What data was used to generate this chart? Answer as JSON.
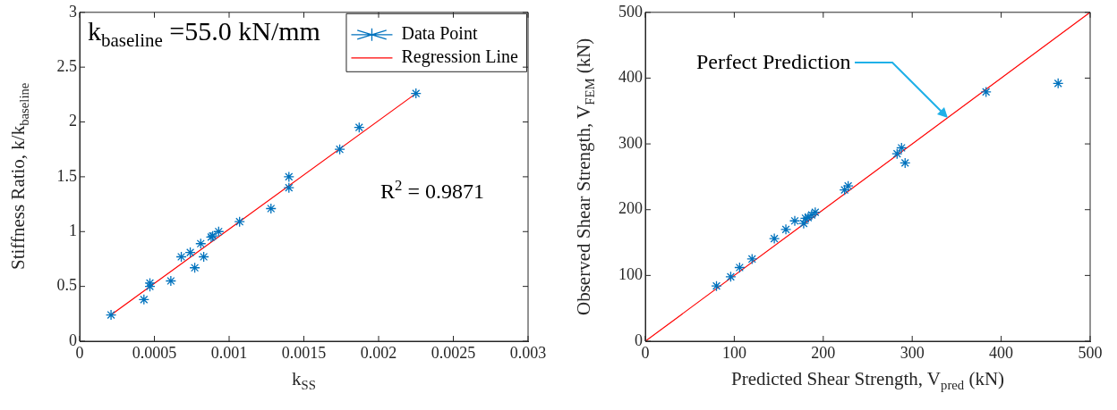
{
  "chart_data": [
    {
      "type": "scatter",
      "xlabel": "k$_{SS}$",
      "ylabel": "Stiffness Ratio, k/k$_{baseline}$",
      "xlim": [
        0,
        0.003
      ],
      "xticks": [
        0,
        0.0005,
        0.001,
        0.0015,
        0.002,
        0.0025,
        0.003
      ],
      "ylim": [
        0,
        3
      ],
      "yticks": [
        0,
        0.5,
        1,
        1.5,
        2,
        2.5,
        3
      ],
      "legend": "top right",
      "marker": "cross",
      "annotations": [
        "k$_{baseline}$ =55.0 kN/mm",
        "R$^{2}$ = 0.9871"
      ],
      "series": [
        {
          "name": "Data Point",
          "color": "#0072bd",
          "x": [
            0.00021,
            0.00043,
            0.00047,
            0.00047,
            0.00061,
            0.00068,
            0.00074,
            0.00077,
            0.00081,
            0.00083,
            0.00088,
            0.00089,
            0.00093,
            0.00107,
            0.00128,
            0.0014,
            0.0014,
            0.00174,
            0.00187,
            0.00225
          ],
          "values": [
            0.24,
            0.38,
            0.5,
            0.53,
            0.55,
            0.77,
            0.81,
            0.67,
            0.89,
            0.77,
            0.95,
            0.96,
            1,
            1.09,
            1.21,
            1.5,
            1.4,
            1.75,
            1.95,
            2.26
          ]
        },
        {
          "name": "Regression Line",
          "type": "line",
          "color": "#ff0000",
          "marker": "none",
          "x": [
            0.00021,
            0.00225
          ],
          "values": [
            0.24,
            2.26
          ]
        }
      ]
    },
    {
      "type": "scatter",
      "xlabel": "Predicted Shear Strength, V$_{pred}$ (kN)",
      "ylabel": "Observed Shear Strength, V$_{FEM}$ (kN)",
      "xlim": [
        0,
        500
      ],
      "xticks": [
        0,
        100,
        200,
        300,
        400,
        500
      ],
      "ylim": [
        0,
        500
      ],
      "yticks": [
        0,
        100,
        200,
        300,
        400,
        500
      ],
      "marker": "cross",
      "annotations": [
        {
          "text": "Perfect Prediction",
          "x": 340,
          "y": 340
        }
      ],
      "series": [
        {
          "color": "#0072bd",
          "x": [
            80,
            96,
            106,
            120,
            145,
            158,
            168,
            178,
            180,
            183,
            187,
            191,
            224,
            228,
            283,
            288,
            292,
            383,
            464
          ],
          "values": [
            84,
            98,
            112,
            125,
            156,
            170,
            183,
            179,
            187,
            188,
            192,
            196,
            230,
            236,
            285,
            294,
            271,
            379,
            392
          ]
        },
        {
          "type": "line",
          "color": "#ff0000",
          "marker": "none",
          "x": [
            0,
            500
          ],
          "values": [
            0,
            500
          ]
        }
      ]
    }
  ]
}
